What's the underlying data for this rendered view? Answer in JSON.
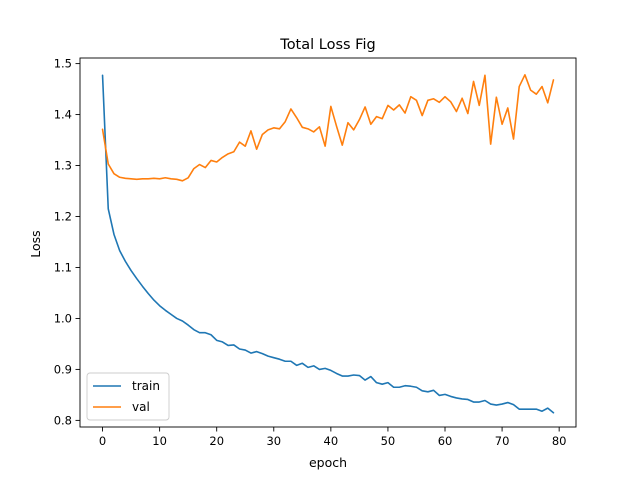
{
  "chart_data": {
    "type": "line",
    "title": "Total Loss Fig",
    "xlabel": "epoch",
    "ylabel": "Loss",
    "xlim": [
      -3.95,
      82.95
    ],
    "ylim": [
      0.787,
      1.511
    ],
    "xticks": [
      0,
      10,
      20,
      30,
      40,
      50,
      60,
      70,
      80
    ],
    "xtick_labels": [
      "0",
      "10",
      "20",
      "30",
      "40",
      "50",
      "60",
      "70",
      "80"
    ],
    "yticks": [
      0.8,
      0.9,
      1.0,
      1.1,
      1.2,
      1.3,
      1.4,
      1.5
    ],
    "ytick_labels": [
      "0.8",
      "0.9",
      "1.0",
      "1.1",
      "1.2",
      "1.3",
      "1.4",
      "1.5"
    ],
    "grid": false,
    "legend_position": "lower-left",
    "x": [
      0,
      1,
      2,
      3,
      4,
      5,
      6,
      7,
      8,
      9,
      10,
      11,
      12,
      13,
      14,
      15,
      16,
      17,
      18,
      19,
      20,
      21,
      22,
      23,
      24,
      25,
      26,
      27,
      28,
      29,
      30,
      31,
      32,
      33,
      34,
      35,
      36,
      37,
      38,
      39,
      40,
      41,
      42,
      43,
      44,
      45,
      46,
      47,
      48,
      49,
      50,
      51,
      52,
      53,
      54,
      55,
      56,
      57,
      58,
      59,
      60,
      61,
      62,
      63,
      64,
      65,
      66,
      67,
      68,
      69,
      70,
      71,
      72,
      73,
      74,
      75,
      76,
      77,
      78,
      79
    ],
    "series": [
      {
        "name": "train",
        "color": "#1f77b4",
        "values": [
          1.477,
          1.215,
          1.165,
          1.133,
          1.112,
          1.094,
          1.078,
          1.063,
          1.049,
          1.036,
          1.025,
          1.016,
          1.008,
          1.0,
          0.995,
          0.987,
          0.978,
          0.972,
          0.972,
          0.968,
          0.957,
          0.954,
          0.947,
          0.948,
          0.94,
          0.938,
          0.932,
          0.935,
          0.931,
          0.926,
          0.923,
          0.92,
          0.916,
          0.916,
          0.908,
          0.912,
          0.904,
          0.907,
          0.9,
          0.902,
          0.898,
          0.892,
          0.887,
          0.887,
          0.889,
          0.888,
          0.879,
          0.886,
          0.874,
          0.871,
          0.874,
          0.865,
          0.865,
          0.868,
          0.867,
          0.865,
          0.858,
          0.856,
          0.859,
          0.849,
          0.851,
          0.847,
          0.844,
          0.842,
          0.841,
          0.836,
          0.836,
          0.839,
          0.832,
          0.83,
          0.832,
          0.835,
          0.831,
          0.822,
          0.822,
          0.822,
          0.822,
          0.818,
          0.824,
          0.815
        ]
      },
      {
        "name": "val",
        "color": "#ff7f0e",
        "values": [
          1.371,
          1.303,
          1.284,
          1.277,
          1.275,
          1.274,
          1.273,
          1.274,
          1.274,
          1.275,
          1.274,
          1.276,
          1.274,
          1.273,
          1.27,
          1.276,
          1.294,
          1.302,
          1.296,
          1.31,
          1.307,
          1.316,
          1.323,
          1.327,
          1.346,
          1.338,
          1.368,
          1.332,
          1.361,
          1.37,
          1.374,
          1.372,
          1.386,
          1.411,
          1.394,
          1.375,
          1.372,
          1.366,
          1.376,
          1.338,
          1.416,
          1.377,
          1.34,
          1.384,
          1.37,
          1.39,
          1.415,
          1.381,
          1.396,
          1.392,
          1.418,
          1.409,
          1.419,
          1.403,
          1.435,
          1.428,
          1.398,
          1.428,
          1.431,
          1.424,
          1.435,
          1.425,
          1.406,
          1.432,
          1.402,
          1.465,
          1.418,
          1.477,
          1.342,
          1.434,
          1.381,
          1.413,
          1.352,
          1.455,
          1.478,
          1.448,
          1.44,
          1.455,
          1.423,
          1.468
        ]
      }
    ]
  }
}
